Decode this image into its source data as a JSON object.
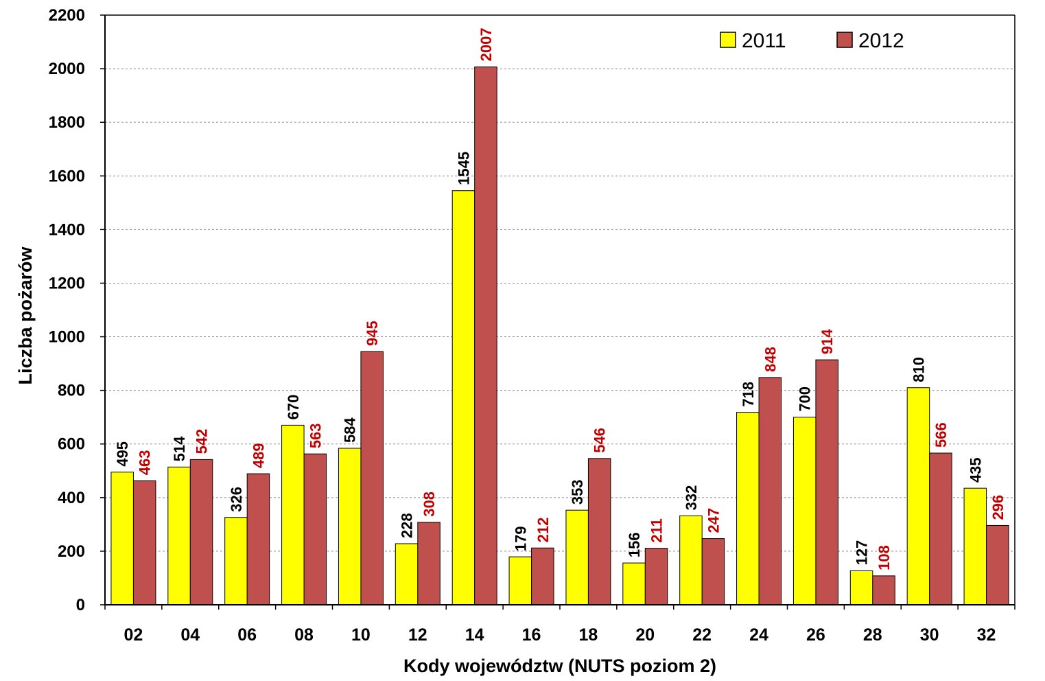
{
  "chart_data": {
    "type": "bar",
    "categories": [
      "02",
      "04",
      "06",
      "08",
      "10",
      "12",
      "14",
      "16",
      "18",
      "20",
      "22",
      "24",
      "26",
      "28",
      "30",
      "32"
    ],
    "series": [
      {
        "name": "2011",
        "color": "#ffff00",
        "label_color": "#000000",
        "values": [
          495,
          514,
          326,
          670,
          584,
          228,
          1545,
          179,
          353,
          156,
          332,
          718,
          700,
          127,
          810,
          435
        ]
      },
      {
        "name": "2012",
        "color": "#c0504d",
        "label_color": "#c00000",
        "values": [
          463,
          542,
          489,
          563,
          945,
          308,
          2007,
          212,
          546,
          211,
          247,
          848,
          914,
          108,
          566,
          296
        ]
      }
    ],
    "xlabel": "Kody województw (NUTS poziom 2)",
    "ylabel": "Liczba pożarów",
    "ylim": [
      0,
      2200
    ],
    "yticks": [
      0,
      200,
      400,
      600,
      800,
      1000,
      1200,
      1400,
      1600,
      1800,
      2000,
      2200
    ],
    "grid": true,
    "legend_position": "top-right",
    "data_labels": "vertical"
  }
}
